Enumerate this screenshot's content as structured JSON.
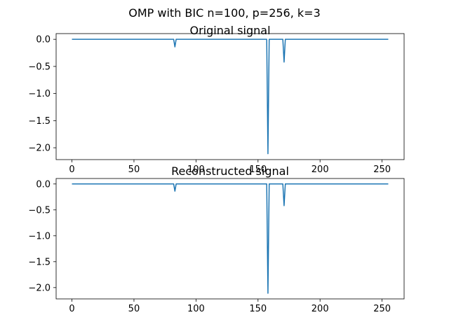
{
  "figure": {
    "suptitle": "OMP with BIC n=100, p=256, k=3"
  },
  "colors": {
    "line": "#1f77b4",
    "axes": "#000000",
    "background": "#ffffff"
  },
  "chart_data": [
    {
      "type": "line",
      "title": "Original signal",
      "xlabel": "",
      "ylabel": "",
      "grid": false,
      "xlim": [
        -12.75,
        267.75
      ],
      "ylim": [
        -2.2185,
        0.1055
      ],
      "xticks": [
        0,
        50,
        100,
        150,
        200,
        250
      ],
      "xtick_labels": [
        "0",
        "50",
        "100",
        "150",
        "200",
        "250"
      ],
      "yticks": [
        0.0,
        -0.5,
        -1.0,
        -1.5,
        -2.0
      ],
      "ytick_labels": [
        "0.0",
        "−0.5",
        "−1.0",
        "−1.5",
        "−2.0"
      ],
      "x_range": [
        0,
        255
      ],
      "baseline": 0.0,
      "spikes": [
        {
          "x": 83,
          "y": -0.14
        },
        {
          "x": 158,
          "y": -2.11
        },
        {
          "x": 171,
          "y": -0.42
        }
      ]
    },
    {
      "type": "line",
      "title": "Reconstructed signal",
      "xlabel": "",
      "ylabel": "",
      "grid": false,
      "xlim": [
        -12.75,
        267.75
      ],
      "ylim": [
        -2.2185,
        0.1055
      ],
      "xticks": [
        0,
        50,
        100,
        150,
        200,
        250
      ],
      "xtick_labels": [
        "0",
        "50",
        "100",
        "150",
        "200",
        "250"
      ],
      "yticks": [
        0.0,
        -0.5,
        -1.0,
        -1.5,
        -2.0
      ],
      "ytick_labels": [
        "0.0",
        "−0.5",
        "−1.0",
        "−1.5",
        "−2.0"
      ],
      "x_range": [
        0,
        255
      ],
      "baseline": 0.0,
      "spikes": [
        {
          "x": 83,
          "y": -0.14
        },
        {
          "x": 158,
          "y": -2.11
        },
        {
          "x": 171,
          "y": -0.42
        }
      ]
    }
  ]
}
